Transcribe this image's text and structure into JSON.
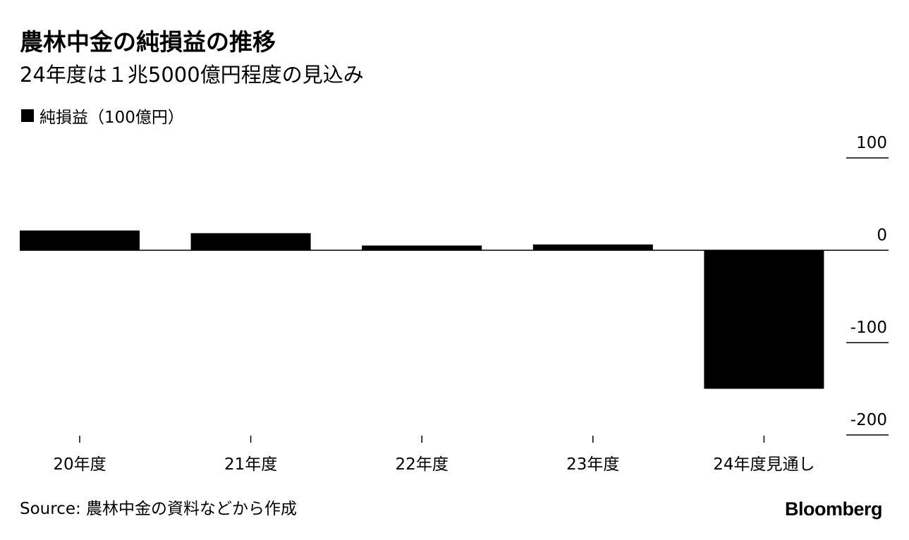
{
  "chart_data": {
    "type": "bar",
    "title": "農林中金の純損益の推移",
    "subtitle": "24年度は１兆5000億円程度の見込み",
    "legend": "純損益（100億円）",
    "categories": [
      "20年度",
      "21年度",
      "22年度",
      "23年度",
      "24年度見通し"
    ],
    "values": [
      21.4,
      18.5,
      5.1,
      6.3,
      -150
    ],
    "ylim": [
      -200,
      100
    ],
    "yticks": [
      100,
      0,
      -100,
      -200
    ],
    "color": "#000000",
    "source": "Source: 農林中金の資料などから作成",
    "brand": "Bloomberg"
  }
}
